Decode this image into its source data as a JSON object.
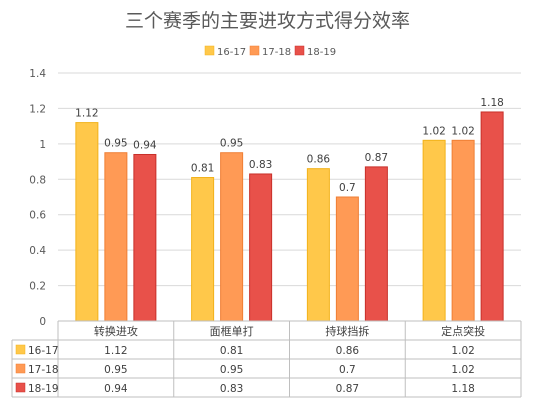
{
  "chart_data": {
    "type": "bar",
    "title": "三个赛季的主要进攻方式得分效率",
    "categories": [
      "转换进攻",
      "面框单打",
      "持球挡拆",
      "定点突投"
    ],
    "series": [
      {
        "name": "16-17",
        "values": [
          1.12,
          0.81,
          0.86,
          1.02
        ],
        "color": "#FFC84A",
        "stroke": "#F2B21A"
      },
      {
        "name": "17-18",
        "values": [
          0.95,
          0.95,
          0.7,
          1.02
        ],
        "color": "#FF9A55",
        "stroke": "#EF7F35"
      },
      {
        "name": "18-19",
        "values": [
          0.94,
          0.83,
          0.87,
          1.18
        ],
        "color": "#E8514A",
        "stroke": "#C8302A"
      }
    ],
    "ylim": [
      0,
      1.4
    ],
    "yticks": [
      "0",
      "0.2",
      "0.4",
      "0.6",
      "0.8",
      "1",
      "1.2",
      "1.4"
    ],
    "legend_position": "top",
    "grid": true,
    "data_table": true
  }
}
